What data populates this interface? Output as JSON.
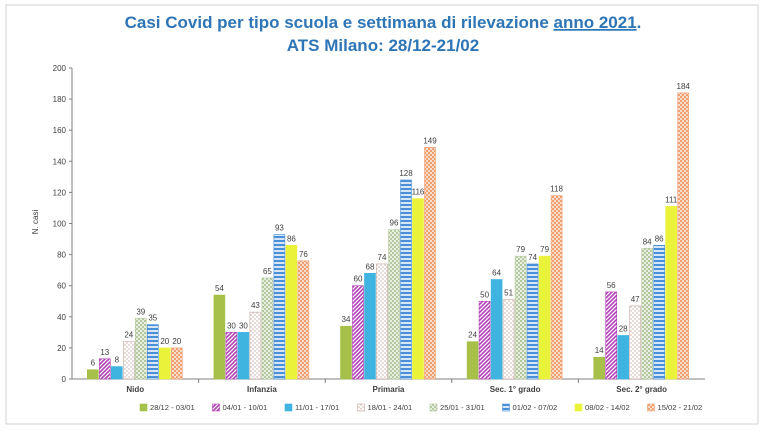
{
  "chart_data": {
    "type": "bar",
    "title_line1_prefix": "Casi Covid per tipo scuola e settimana di rilevazione ",
    "title_line1_underlined": "anno 2021",
    "title_line1_suffix": ".",
    "title_line2": "ATS Milano: 28/12-21/02",
    "ylabel": "N. casi",
    "xlabel": "",
    "ylim": [
      0,
      200
    ],
    "yticks": [
      0,
      20,
      40,
      60,
      80,
      100,
      120,
      140,
      160,
      180,
      200
    ],
    "grid": false,
    "legend_position": "bottom",
    "categories": [
      "Nido",
      "Infanzia",
      "Primaria",
      "Sec. 1° grado",
      "Sec. 2° grado"
    ],
    "series": [
      {
        "name": "28/12 - 03/01",
        "values": [
          6,
          54,
          34,
          24,
          14
        ],
        "color": "#a6c04a",
        "pattern": "solid"
      },
      {
        "name": "04/01 - 10/01",
        "values": [
          13,
          30,
          60,
          50,
          56
        ],
        "color": "#b23fb8",
        "pattern": "diagonal"
      },
      {
        "name": "11/01 - 17/01",
        "values": [
          8,
          30,
          68,
          64,
          28
        ],
        "color": "#40b4e0",
        "pattern": "solid"
      },
      {
        "name": "18/01 - 24/01",
        "values": [
          24,
          43,
          74,
          51,
          47
        ],
        "color": "#c8a8a0",
        "pattern": "dots"
      },
      {
        "name": "25/01 - 31/01",
        "values": [
          39,
          65,
          96,
          79,
          84
        ],
        "color": "#b5c8a0",
        "pattern": "dense"
      },
      {
        "name": "01/02 - 07/02",
        "values": [
          35,
          93,
          128,
          74,
          86
        ],
        "color": "#4a90d9",
        "pattern": "hlines"
      },
      {
        "name": "08/02 - 14/02",
        "values": [
          20,
          86,
          116,
          79,
          111
        ],
        "color": "#eaf23a",
        "pattern": "solid"
      },
      {
        "name": "15/02 - 21/02",
        "values": [
          20,
          76,
          149,
          118,
          184
        ],
        "color": "#f0a070",
        "pattern": "checker"
      }
    ]
  }
}
